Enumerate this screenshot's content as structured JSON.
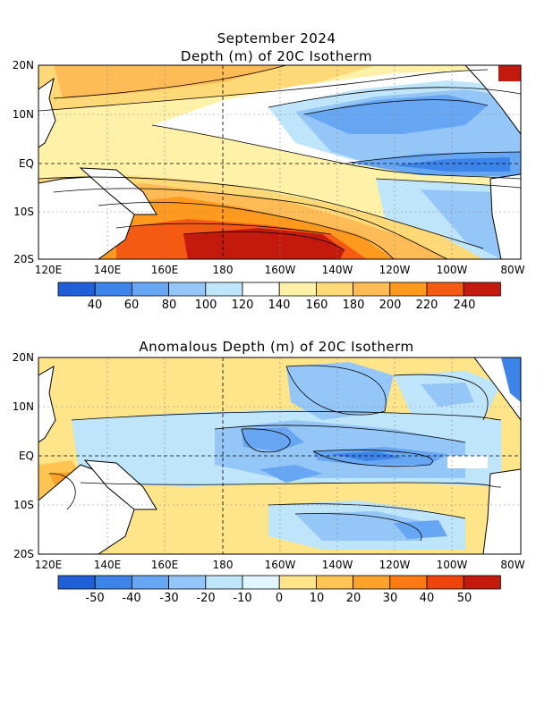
{
  "header": {
    "title_line1": "September 2024",
    "title_line2": "Depth (m) of 20C Isotherm"
  },
  "panel2": {
    "title": "Anomalous Depth (m) of 20C Isotherm"
  },
  "axes": {
    "lat_labels": [
      "20N",
      "10N",
      "EQ",
      "10S",
      "20S"
    ],
    "lon_labels": [
      "120E",
      "140E",
      "160E",
      "180",
      "160W",
      "140W",
      "120W",
      "100W",
      "80W"
    ]
  },
  "colorbar1": {
    "colors": [
      "#1f5fd8",
      "#3d84ea",
      "#66a6f2",
      "#94c6f7",
      "#bfe5fb",
      "#ffffff",
      "#fff2a8",
      "#ffd978",
      "#ffbb55",
      "#ff9a1e",
      "#f55a12",
      "#c41a0e"
    ],
    "labels": [
      "40",
      "60",
      "80",
      "100",
      "120",
      "140",
      "160",
      "180",
      "200",
      "220",
      "240"
    ]
  },
  "colorbar2": {
    "colors": [
      "#1f5fd8",
      "#3d84ea",
      "#66a6f2",
      "#94c6f7",
      "#bfe5fb",
      "#dff6ff",
      "#ffe58a",
      "#ffc451",
      "#ffa22a",
      "#ff7a12",
      "#f0440d",
      "#c41a0e"
    ],
    "labels": [
      "-50",
      "-40",
      "-30",
      "-20",
      "-10",
      "0",
      "10",
      "20",
      "30",
      "40",
      "50"
    ]
  }
}
